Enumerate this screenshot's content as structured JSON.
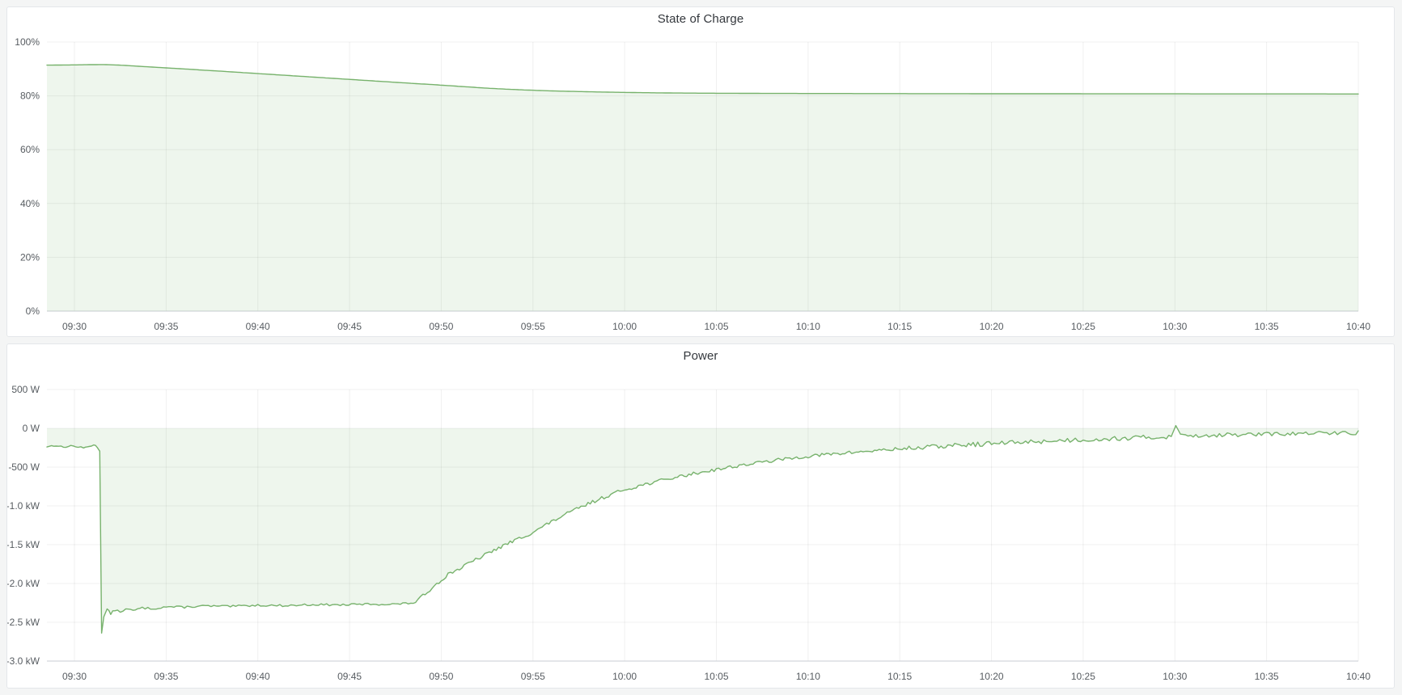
{
  "colors": {
    "page_bg": "#f4f5f5",
    "panel_bg": "#ffffff",
    "panel_border": "#e4e7ea",
    "title": "#34383d",
    "tick": "#575c61",
    "grid": "#24292e",
    "grid_opacity": 0.07,
    "axis": "#c9ced3",
    "accent_green": "#77b26c"
  },
  "chart_data": [
    {
      "type": "area",
      "title": "State of Charge",
      "x": {
        "label_type": "time",
        "range_minutes": [
          -1.5,
          70
        ],
        "tick_minutes": [
          0,
          5,
          10,
          15,
          20,
          25,
          30,
          35,
          40,
          45,
          50,
          55,
          60,
          65,
          70
        ],
        "tick_labels": [
          "09:30",
          "09:35",
          "09:40",
          "09:45",
          "09:50",
          "09:55",
          "10:00",
          "10:05",
          "10:10",
          "10:15",
          "10:20",
          "10:25",
          "10:30",
          "10:35",
          "10:40"
        ]
      },
      "y": {
        "range": [
          0,
          100
        ],
        "tick_values": [
          0,
          20,
          40,
          60,
          80,
          100
        ],
        "tick_labels": [
          "0%",
          "20%",
          "40%",
          "60%",
          "80%",
          "100%"
        ]
      },
      "grid": true,
      "legend": "none",
      "series": [
        {
          "name": "state-of-charge",
          "color": "#77b26c",
          "fill_opacity": 0.12,
          "baseline": 0,
          "unit": "%",
          "points": [
            [
              -1.5,
              91.4
            ],
            [
              0,
              91.5
            ],
            [
              0.8,
              91.58
            ],
            [
              1.6,
              91.62
            ],
            [
              2.4,
              91.45
            ],
            [
              3.5,
              91.0
            ],
            [
              5,
              90.4
            ],
            [
              6.5,
              89.78
            ],
            [
              8,
              89.15
            ],
            [
              9.5,
              88.5
            ],
            [
              11,
              87.85
            ],
            [
              12.5,
              87.2
            ],
            [
              14,
              86.55
            ],
            [
              15.5,
              85.9
            ],
            [
              17,
              85.25
            ],
            [
              18.5,
              84.6
            ],
            [
              19.5,
              84.2
            ],
            [
              20.5,
              83.75
            ],
            [
              21.5,
              83.3
            ],
            [
              22.5,
              82.85
            ],
            [
              23.5,
              82.5
            ],
            [
              24.5,
              82.2
            ],
            [
              25.5,
              81.95
            ],
            [
              26.5,
              81.75
            ],
            [
              27.5,
              81.6
            ],
            [
              28.5,
              81.45
            ],
            [
              29.5,
              81.33
            ],
            [
              31,
              81.18
            ],
            [
              32.5,
              81.07
            ],
            [
              34,
              81.0
            ],
            [
              36,
              80.95
            ],
            [
              38,
              80.9
            ],
            [
              41,
              80.87
            ],
            [
              44,
              80.84
            ],
            [
              48,
              80.8
            ],
            [
              52,
              80.78
            ],
            [
              56,
              80.76
            ],
            [
              60,
              80.74
            ],
            [
              64,
              80.72
            ],
            [
              67,
              80.71
            ],
            [
              70,
              80.7
            ]
          ],
          "noise_segments": []
        }
      ]
    },
    {
      "type": "area",
      "title": "Power",
      "x": {
        "label_type": "time",
        "range_minutes": [
          -1.5,
          70
        ],
        "tick_minutes": [
          0,
          5,
          10,
          15,
          20,
          25,
          30,
          35,
          40,
          45,
          50,
          55,
          60,
          65,
          70
        ],
        "tick_labels": [
          "09:30",
          "09:35",
          "09:40",
          "09:45",
          "09:50",
          "09:55",
          "10:00",
          "10:05",
          "10:10",
          "10:15",
          "10:20",
          "10:25",
          "10:30",
          "10:35",
          "10:40"
        ]
      },
      "y": {
        "range": [
          -3000,
          500
        ],
        "tick_values": [
          500,
          0,
          -500,
          -1000,
          -1500,
          -2000,
          -2500,
          -3000
        ],
        "tick_labels": [
          "500 W",
          "0 W",
          "-500 W",
          "-1.0 kW",
          "-1.5 kW",
          "-2.0 kW",
          "-2.5 kW",
          "-3.0 kW"
        ]
      },
      "grid": true,
      "legend": "none",
      "series": [
        {
          "name": "power",
          "color": "#77b26c",
          "fill_opacity": 0.12,
          "baseline": 0,
          "unit": "W",
          "points": [
            [
              -1.5,
              -235
            ],
            [
              -1.0,
              -220
            ],
            [
              -0.6,
              -245
            ],
            [
              -0.2,
              -225
            ],
            [
              0.2,
              -240
            ],
            [
              0.5,
              -255
            ],
            [
              0.8,
              -230
            ],
            [
              1.05,
              -215
            ],
            [
              1.25,
              -240
            ],
            [
              1.38,
              -295
            ],
            [
              1.48,
              -2640
            ],
            [
              1.6,
              -2430
            ],
            [
              1.78,
              -2330
            ],
            [
              1.98,
              -2390
            ],
            [
              2.2,
              -2340
            ],
            [
              2.5,
              -2365
            ],
            [
              2.8,
              -2330
            ],
            [
              3.2,
              -2350
            ],
            [
              3.7,
              -2315
            ],
            [
              4.3,
              -2325
            ],
            [
              5,
              -2300
            ],
            [
              6,
              -2305
            ],
            [
              7,
              -2290
            ],
            [
              8.5,
              -2296
            ],
            [
              10,
              -2280
            ],
            [
              11.5,
              -2286
            ],
            [
              13,
              -2272
            ],
            [
              14.5,
              -2277
            ],
            [
              16,
              -2266
            ],
            [
              17.2,
              -2269
            ],
            [
              18.2,
              -2256
            ],
            [
              18.6,
              -2245
            ],
            [
              19,
              -2160
            ],
            [
              19.5,
              -2055
            ],
            [
              20,
              -1955
            ],
            [
              20.5,
              -1860
            ],
            [
              21,
              -1810
            ],
            [
              21.5,
              -1742
            ],
            [
              22,
              -1680
            ],
            [
              22.5,
              -1617
            ],
            [
              23,
              -1558
            ],
            [
              23.5,
              -1500
            ],
            [
              24,
              -1446
            ],
            [
              24.5,
              -1393
            ],
            [
              25,
              -1342
            ],
            [
              25.5,
              -1272
            ],
            [
              26,
              -1206
            ],
            [
              26.5,
              -1143
            ],
            [
              27,
              -1084
            ],
            [
              27.5,
              -1028
            ],
            [
              28,
              -975
            ],
            [
              28.5,
              -924
            ],
            [
              29,
              -876
            ],
            [
              29.5,
              -831
            ],
            [
              30,
              -790
            ],
            [
              30.5,
              -759
            ],
            [
              31,
              -729
            ],
            [
              31.5,
              -700
            ],
            [
              32,
              -673
            ],
            [
              32.5,
              -646
            ],
            [
              33,
              -621
            ],
            [
              33.5,
              -597
            ],
            [
              34,
              -573
            ],
            [
              34.5,
              -551
            ],
            [
              35,
              -530
            ],
            [
              35.5,
              -510
            ],
            [
              36,
              -490
            ],
            [
              36.5,
              -472
            ],
            [
              37,
              -454
            ],
            [
              37.5,
              -437
            ],
            [
              38,
              -420
            ],
            [
              38.5,
              -404
            ],
            [
              39,
              -389
            ],
            [
              39.5,
              -374
            ],
            [
              40,
              -360
            ],
            [
              40.5,
              -349
            ],
            [
              41,
              -339
            ],
            [
              41.5,
              -329
            ],
            [
              42,
              -319
            ],
            [
              42.5,
              -309
            ],
            [
              43,
              -300
            ],
            [
              43.5,
              -291
            ],
            [
              44,
              -282
            ],
            [
              44.5,
              -273
            ],
            [
              45,
              -265
            ],
            [
              45.5,
              -257
            ],
            [
              46,
              -250
            ],
            [
              46.5,
              -243
            ],
            [
              47,
              -236
            ],
            [
              47.5,
              -229
            ],
            [
              48,
              -222
            ],
            [
              48.5,
              -215
            ],
            [
              49,
              -209
            ],
            [
              49.5,
              -203
            ],
            [
              50,
              -197
            ],
            [
              51,
              -186
            ],
            [
              52,
              -175
            ],
            [
              53,
              -165
            ],
            [
              54,
              -155
            ],
            [
              55,
              -146
            ],
            [
              56,
              -138
            ],
            [
              57,
              -130
            ],
            [
              58,
              -122
            ],
            [
              59,
              -115
            ],
            [
              59.8,
              -105
            ],
            [
              60.05,
              35
            ],
            [
              60.3,
              -75
            ],
            [
              61,
              -96
            ],
            [
              62,
              -90
            ],
            [
              63,
              -85
            ],
            [
              64,
              -80
            ],
            [
              65,
              -76
            ],
            [
              66,
              -72
            ],
            [
              67,
              -68
            ],
            [
              68,
              -64
            ],
            [
              69,
              -60
            ],
            [
              70,
              -55
            ]
          ],
          "noise_segments": [
            {
              "t0": -1.5,
              "t1": 1.35,
              "amp": 10
            },
            {
              "t0": 1.7,
              "t1": 18.5,
              "amp": 13
            },
            {
              "t0": 18.7,
              "t1": 45,
              "amp": 22
            },
            {
              "t0": 45,
              "t1": 59.7,
              "amp": 30
            },
            {
              "t0": 60.5,
              "t1": 70,
              "amp": 26
            }
          ]
        }
      ]
    }
  ]
}
